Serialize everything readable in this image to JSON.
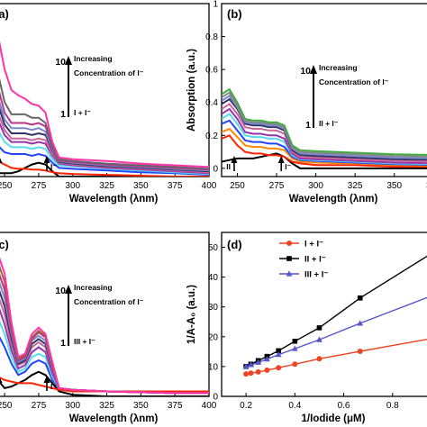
{
  "chart_data": [
    {
      "panel_label": "(a)",
      "type": "line",
      "xlabel": "Wavelength (λnm)",
      "ylabel": "",
      "xlim": [
        240,
        400
      ],
      "ylim": [
        0,
        1.0
      ],
      "x_ticks": [
        250,
        275,
        300,
        325,
        350,
        375,
        400
      ],
      "y_ticks": [],
      "annotation_increasing": "Increasing",
      "annotation_concentration": "Concentration of  I⁻",
      "arrow_top": "10",
      "arrow_bottom": "1",
      "arrow_bottom_label": "I + I⁻",
      "marker_left": "I",
      "marker_right": "I⁻",
      "x": [
        240,
        245,
        250,
        255,
        260,
        265,
        270,
        275,
        280,
        285,
        290,
        300,
        325,
        350,
        375,
        400
      ],
      "series": [
        {
          "name": "I⁻",
          "color": "#000000",
          "values": [
            0.02,
            0.02,
            0.02,
            0.02,
            0.03,
            0.05,
            0.07,
            0.08,
            0.07,
            0.03,
            0.0,
            0.0,
            0.0,
            0.0,
            0.0,
            0.0
          ]
        },
        {
          "name": "I",
          "color": "#ff2200",
          "values": [
            0.1,
            0.09,
            0.07,
            0.05,
            0.045,
            0.045,
            0.04,
            0.04,
            0.035,
            0.025,
            0.02,
            0.015,
            0.01,
            0.005,
            0.0,
            0.0
          ]
        },
        {
          "name": "2",
          "color": "#2244ff",
          "values": [
            0.22,
            0.18,
            0.14,
            0.13,
            0.13,
            0.13,
            0.12,
            0.13,
            0.12,
            0.08,
            0.05,
            0.045,
            0.035,
            0.025,
            0.02,
            0.01
          ]
        },
        {
          "name": "3",
          "color": "#55ddee",
          "values": [
            0.33,
            0.27,
            0.2,
            0.17,
            0.17,
            0.17,
            0.16,
            0.17,
            0.16,
            0.1,
            0.065,
            0.06,
            0.045,
            0.035,
            0.025,
            0.015
          ]
        },
        {
          "name": "4",
          "color": "#9933aa",
          "values": [
            0.4,
            0.33,
            0.24,
            0.2,
            0.2,
            0.2,
            0.19,
            0.2,
            0.19,
            0.12,
            0.075,
            0.065,
            0.05,
            0.04,
            0.03,
            0.02
          ]
        },
        {
          "name": "5",
          "color": "#cc6699",
          "values": [
            0.44,
            0.37,
            0.27,
            0.22,
            0.22,
            0.22,
            0.21,
            0.22,
            0.21,
            0.13,
            0.08,
            0.07,
            0.055,
            0.045,
            0.035,
            0.025
          ]
        },
        {
          "name": "6",
          "color": "#333366",
          "values": [
            0.5,
            0.42,
            0.3,
            0.25,
            0.25,
            0.25,
            0.24,
            0.25,
            0.24,
            0.15,
            0.085,
            0.075,
            0.06,
            0.05,
            0.04,
            0.03
          ]
        },
        {
          "name": "7",
          "color": "#7788cc",
          "values": [
            0.55,
            0.46,
            0.33,
            0.28,
            0.28,
            0.28,
            0.27,
            0.28,
            0.26,
            0.16,
            0.09,
            0.08,
            0.065,
            0.055,
            0.045,
            0.035
          ]
        },
        {
          "name": "8",
          "color": "#bb3388",
          "values": [
            0.62,
            0.52,
            0.37,
            0.31,
            0.31,
            0.31,
            0.3,
            0.31,
            0.29,
            0.17,
            0.095,
            0.085,
            0.07,
            0.06,
            0.05,
            0.04
          ]
        },
        {
          "name": "9",
          "color": "#666666",
          "values": [
            0.7,
            0.6,
            0.43,
            0.36,
            0.36,
            0.36,
            0.34,
            0.34,
            0.31,
            0.18,
            0.1,
            0.09,
            0.075,
            0.065,
            0.055,
            0.045
          ]
        },
        {
          "name": "10",
          "color": "#ff33aa",
          "values": [
            0.95,
            0.82,
            0.62,
            0.5,
            0.47,
            0.45,
            0.42,
            0.41,
            0.37,
            0.2,
            0.11,
            0.1,
            0.09,
            0.075,
            0.065,
            0.055
          ]
        }
      ]
    },
    {
      "panel_label": "(b)",
      "type": "line",
      "xlabel": "Wavelength (λnm)",
      "ylabel": "Absorption (a.u.)",
      "xlim": [
        240,
        380
      ],
      "ylim": [
        -0.05,
        1.0
      ],
      "x_ticks": [
        250,
        275,
        300,
        325,
        350,
        375
      ],
      "y_ticks": [
        0.0,
        0.2,
        0.4,
        0.6,
        0.8,
        1.0
      ],
      "annotation_increasing": "Increasing",
      "annotation_concentration": "Concentration of  I⁻",
      "arrow_top": "10",
      "arrow_bottom": "1",
      "arrow_bottom_label": "II + I⁻",
      "marker_left": "II",
      "marker_right": "I⁻",
      "x": [
        240,
        245,
        250,
        255,
        260,
        265,
        270,
        275,
        280,
        285,
        290,
        300,
        325,
        350,
        380
      ],
      "series": [
        {
          "name": "I⁻",
          "color": "#000000",
          "values": [
            0.04,
            0.05,
            0.06,
            0.06,
            0.06,
            0.07,
            0.08,
            0.09,
            0.07,
            0.03,
            0.0,
            0.0,
            0.0,
            0.0,
            0.0
          ]
        },
        {
          "name": "II",
          "color": "#ff2200",
          "values": [
            0.18,
            0.2,
            0.14,
            0.1,
            0.09,
            0.09,
            0.08,
            0.08,
            0.07,
            0.04,
            0.03,
            0.02,
            0.02,
            0.01,
            0.01
          ]
        },
        {
          "name": "2",
          "color": "#ff8800",
          "values": [
            0.22,
            0.24,
            0.19,
            0.14,
            0.13,
            0.13,
            0.12,
            0.12,
            0.11,
            0.06,
            0.04,
            0.035,
            0.03,
            0.02,
            0.015
          ]
        },
        {
          "name": "3",
          "color": "#2244ff",
          "values": [
            0.27,
            0.29,
            0.23,
            0.17,
            0.16,
            0.16,
            0.15,
            0.15,
            0.13,
            0.07,
            0.05,
            0.045,
            0.035,
            0.025,
            0.02
          ]
        },
        {
          "name": "4",
          "color": "#55ddee",
          "values": [
            0.3,
            0.33,
            0.27,
            0.2,
            0.19,
            0.19,
            0.18,
            0.18,
            0.16,
            0.08,
            0.055,
            0.05,
            0.04,
            0.03,
            0.025
          ]
        },
        {
          "name": "5",
          "color": "#9933aa",
          "values": [
            0.33,
            0.36,
            0.3,
            0.22,
            0.21,
            0.21,
            0.2,
            0.2,
            0.18,
            0.09,
            0.06,
            0.055,
            0.045,
            0.035,
            0.03
          ]
        },
        {
          "name": "6",
          "color": "#cc6699",
          "values": [
            0.36,
            0.39,
            0.33,
            0.25,
            0.24,
            0.24,
            0.23,
            0.23,
            0.21,
            0.1,
            0.07,
            0.065,
            0.055,
            0.045,
            0.04
          ]
        },
        {
          "name": "7",
          "color": "#333366",
          "values": [
            0.39,
            0.42,
            0.36,
            0.27,
            0.26,
            0.26,
            0.25,
            0.25,
            0.23,
            0.11,
            0.08,
            0.075,
            0.065,
            0.055,
            0.05
          ]
        },
        {
          "name": "8",
          "color": "#7788cc",
          "values": [
            0.41,
            0.44,
            0.37,
            0.28,
            0.27,
            0.27,
            0.26,
            0.26,
            0.24,
            0.12,
            0.09,
            0.085,
            0.075,
            0.065,
            0.06
          ]
        },
        {
          "name": "9",
          "color": "#888888",
          "values": [
            0.43,
            0.46,
            0.38,
            0.29,
            0.28,
            0.28,
            0.27,
            0.27,
            0.25,
            0.13,
            0.1,
            0.095,
            0.085,
            0.075,
            0.07
          ]
        },
        {
          "name": "10",
          "color": "#44aa44",
          "values": [
            0.45,
            0.48,
            0.4,
            0.3,
            0.29,
            0.29,
            0.28,
            0.28,
            0.26,
            0.14,
            0.11,
            0.105,
            0.095,
            0.085,
            0.08
          ]
        }
      ]
    },
    {
      "panel_label": "(c)",
      "type": "line",
      "xlabel": "Wavelength (λnm)",
      "ylabel": "",
      "xlim": [
        240,
        400
      ],
      "ylim": [
        0,
        1.0
      ],
      "x_ticks": [
        250,
        275,
        300,
        325,
        350,
        375,
        400
      ],
      "y_ticks": [],
      "annotation_increasing": "Increasing",
      "annotation_concentration": "Concentration of  I⁻",
      "arrow_top": "10",
      "arrow_bottom": "1",
      "arrow_bottom_label": "III + I⁻",
      "marker_left": "III",
      "marker_right": "I⁻",
      "x": [
        240,
        245,
        250,
        255,
        260,
        265,
        270,
        275,
        280,
        285,
        290,
        300,
        325,
        350,
        375,
        400
      ],
      "series": [
        {
          "name": "I⁻",
          "color": "#000000",
          "values": [
            0.2,
            0.1,
            0.05,
            0.06,
            0.08,
            0.1,
            0.13,
            0.15,
            0.13,
            0.08,
            0.03,
            0.01,
            0.0,
            0.0,
            0.0,
            0.0
          ]
        },
        {
          "name": "III",
          "color": "#ff2200",
          "values": [
            0.12,
            0.12,
            0.1,
            0.09,
            0.08,
            0.08,
            0.08,
            0.07,
            0.06,
            0.05,
            0.04,
            0.03,
            0.03,
            0.03,
            0.03,
            0.03
          ]
        },
        {
          "name": "2",
          "color": "#2244ff",
          "values": [
            0.4,
            0.38,
            0.3,
            0.2,
            0.13,
            0.15,
            0.2,
            0.22,
            0.2,
            0.1,
            0.05,
            0.04,
            0.03,
            0.025,
            0.02,
            0.02
          ]
        },
        {
          "name": "3",
          "color": "#55ddee",
          "values": [
            0.5,
            0.48,
            0.38,
            0.24,
            0.15,
            0.17,
            0.24,
            0.26,
            0.24,
            0.12,
            0.05,
            0.04,
            0.03,
            0.025,
            0.02,
            0.02
          ]
        },
        {
          "name": "4",
          "color": "#9933aa",
          "values": [
            0.58,
            0.56,
            0.44,
            0.28,
            0.17,
            0.19,
            0.27,
            0.3,
            0.27,
            0.14,
            0.05,
            0.04,
            0.03,
            0.025,
            0.02,
            0.02
          ]
        },
        {
          "name": "5",
          "color": "#cc6699",
          "values": [
            0.65,
            0.62,
            0.5,
            0.32,
            0.19,
            0.21,
            0.3,
            0.33,
            0.3,
            0.16,
            0.05,
            0.04,
            0.03,
            0.025,
            0.02,
            0.02
          ]
        },
        {
          "name": "6",
          "color": "#333366",
          "values": [
            0.7,
            0.67,
            0.55,
            0.35,
            0.2,
            0.22,
            0.32,
            0.35,
            0.32,
            0.17,
            0.05,
            0.04,
            0.03,
            0.025,
            0.02,
            0.02
          ]
        },
        {
          "name": "7",
          "color": "#7788cc",
          "values": [
            0.75,
            0.72,
            0.6,
            0.38,
            0.21,
            0.23,
            0.34,
            0.37,
            0.34,
            0.18,
            0.05,
            0.04,
            0.03,
            0.025,
            0.02,
            0.02
          ]
        },
        {
          "name": "8",
          "color": "#bb3388",
          "values": [
            0.8,
            0.77,
            0.65,
            0.4,
            0.22,
            0.24,
            0.35,
            0.39,
            0.36,
            0.19,
            0.05,
            0.04,
            0.03,
            0.025,
            0.02,
            0.02
          ]
        },
        {
          "name": "9",
          "color": "#996633",
          "values": [
            0.85,
            0.82,
            0.7,
            0.43,
            0.23,
            0.25,
            0.36,
            0.4,
            0.37,
            0.2,
            0.05,
            0.04,
            0.03,
            0.025,
            0.02,
            0.02
          ]
        },
        {
          "name": "10",
          "color": "#ff33aa",
          "values": [
            0.9,
            0.87,
            0.75,
            0.45,
            0.24,
            0.26,
            0.38,
            0.42,
            0.38,
            0.21,
            0.05,
            0.04,
            0.03,
            0.025,
            0.02,
            0.02
          ]
        }
      ]
    },
    {
      "panel_label": "(d)",
      "type": "line",
      "xlabel": "1/Iodide (μM)",
      "ylabel": "1/A-A₀ (a.u.)",
      "xlim": [
        0.1,
        1.0
      ],
      "ylim": [
        0,
        55
      ],
      "x_ticks": [
        0.2,
        0.4,
        0.6,
        0.8
      ],
      "y_ticks": [
        0,
        10,
        20,
        30,
        40,
        50
      ],
      "legend_position": "top-left",
      "x": [
        0.2,
        0.22,
        0.25,
        0.286,
        0.333,
        0.4,
        0.5,
        0.667,
        1.0
      ],
      "series": [
        {
          "name": "I + I⁻",
          "color": "#ee4422",
          "marker": "circle",
          "values": [
            7.5,
            7.8,
            8.2,
            8.8,
            9.6,
            10.8,
            12.6,
            15.1,
            20.0
          ]
        },
        {
          "name": "II + I⁻",
          "color": "#000000",
          "marker": "square",
          "values": [
            10.0,
            10.8,
            12.0,
            13.4,
            15.3,
            18.5,
            23.0,
            33.0,
            50.0
          ]
        },
        {
          "name": "III + I⁻",
          "color": "#5555cc",
          "marker": "triangle",
          "values": [
            10.0,
            10.6,
            11.4,
            12.5,
            14.0,
            16.0,
            19.0,
            24.5,
            35.0
          ]
        }
      ]
    }
  ]
}
